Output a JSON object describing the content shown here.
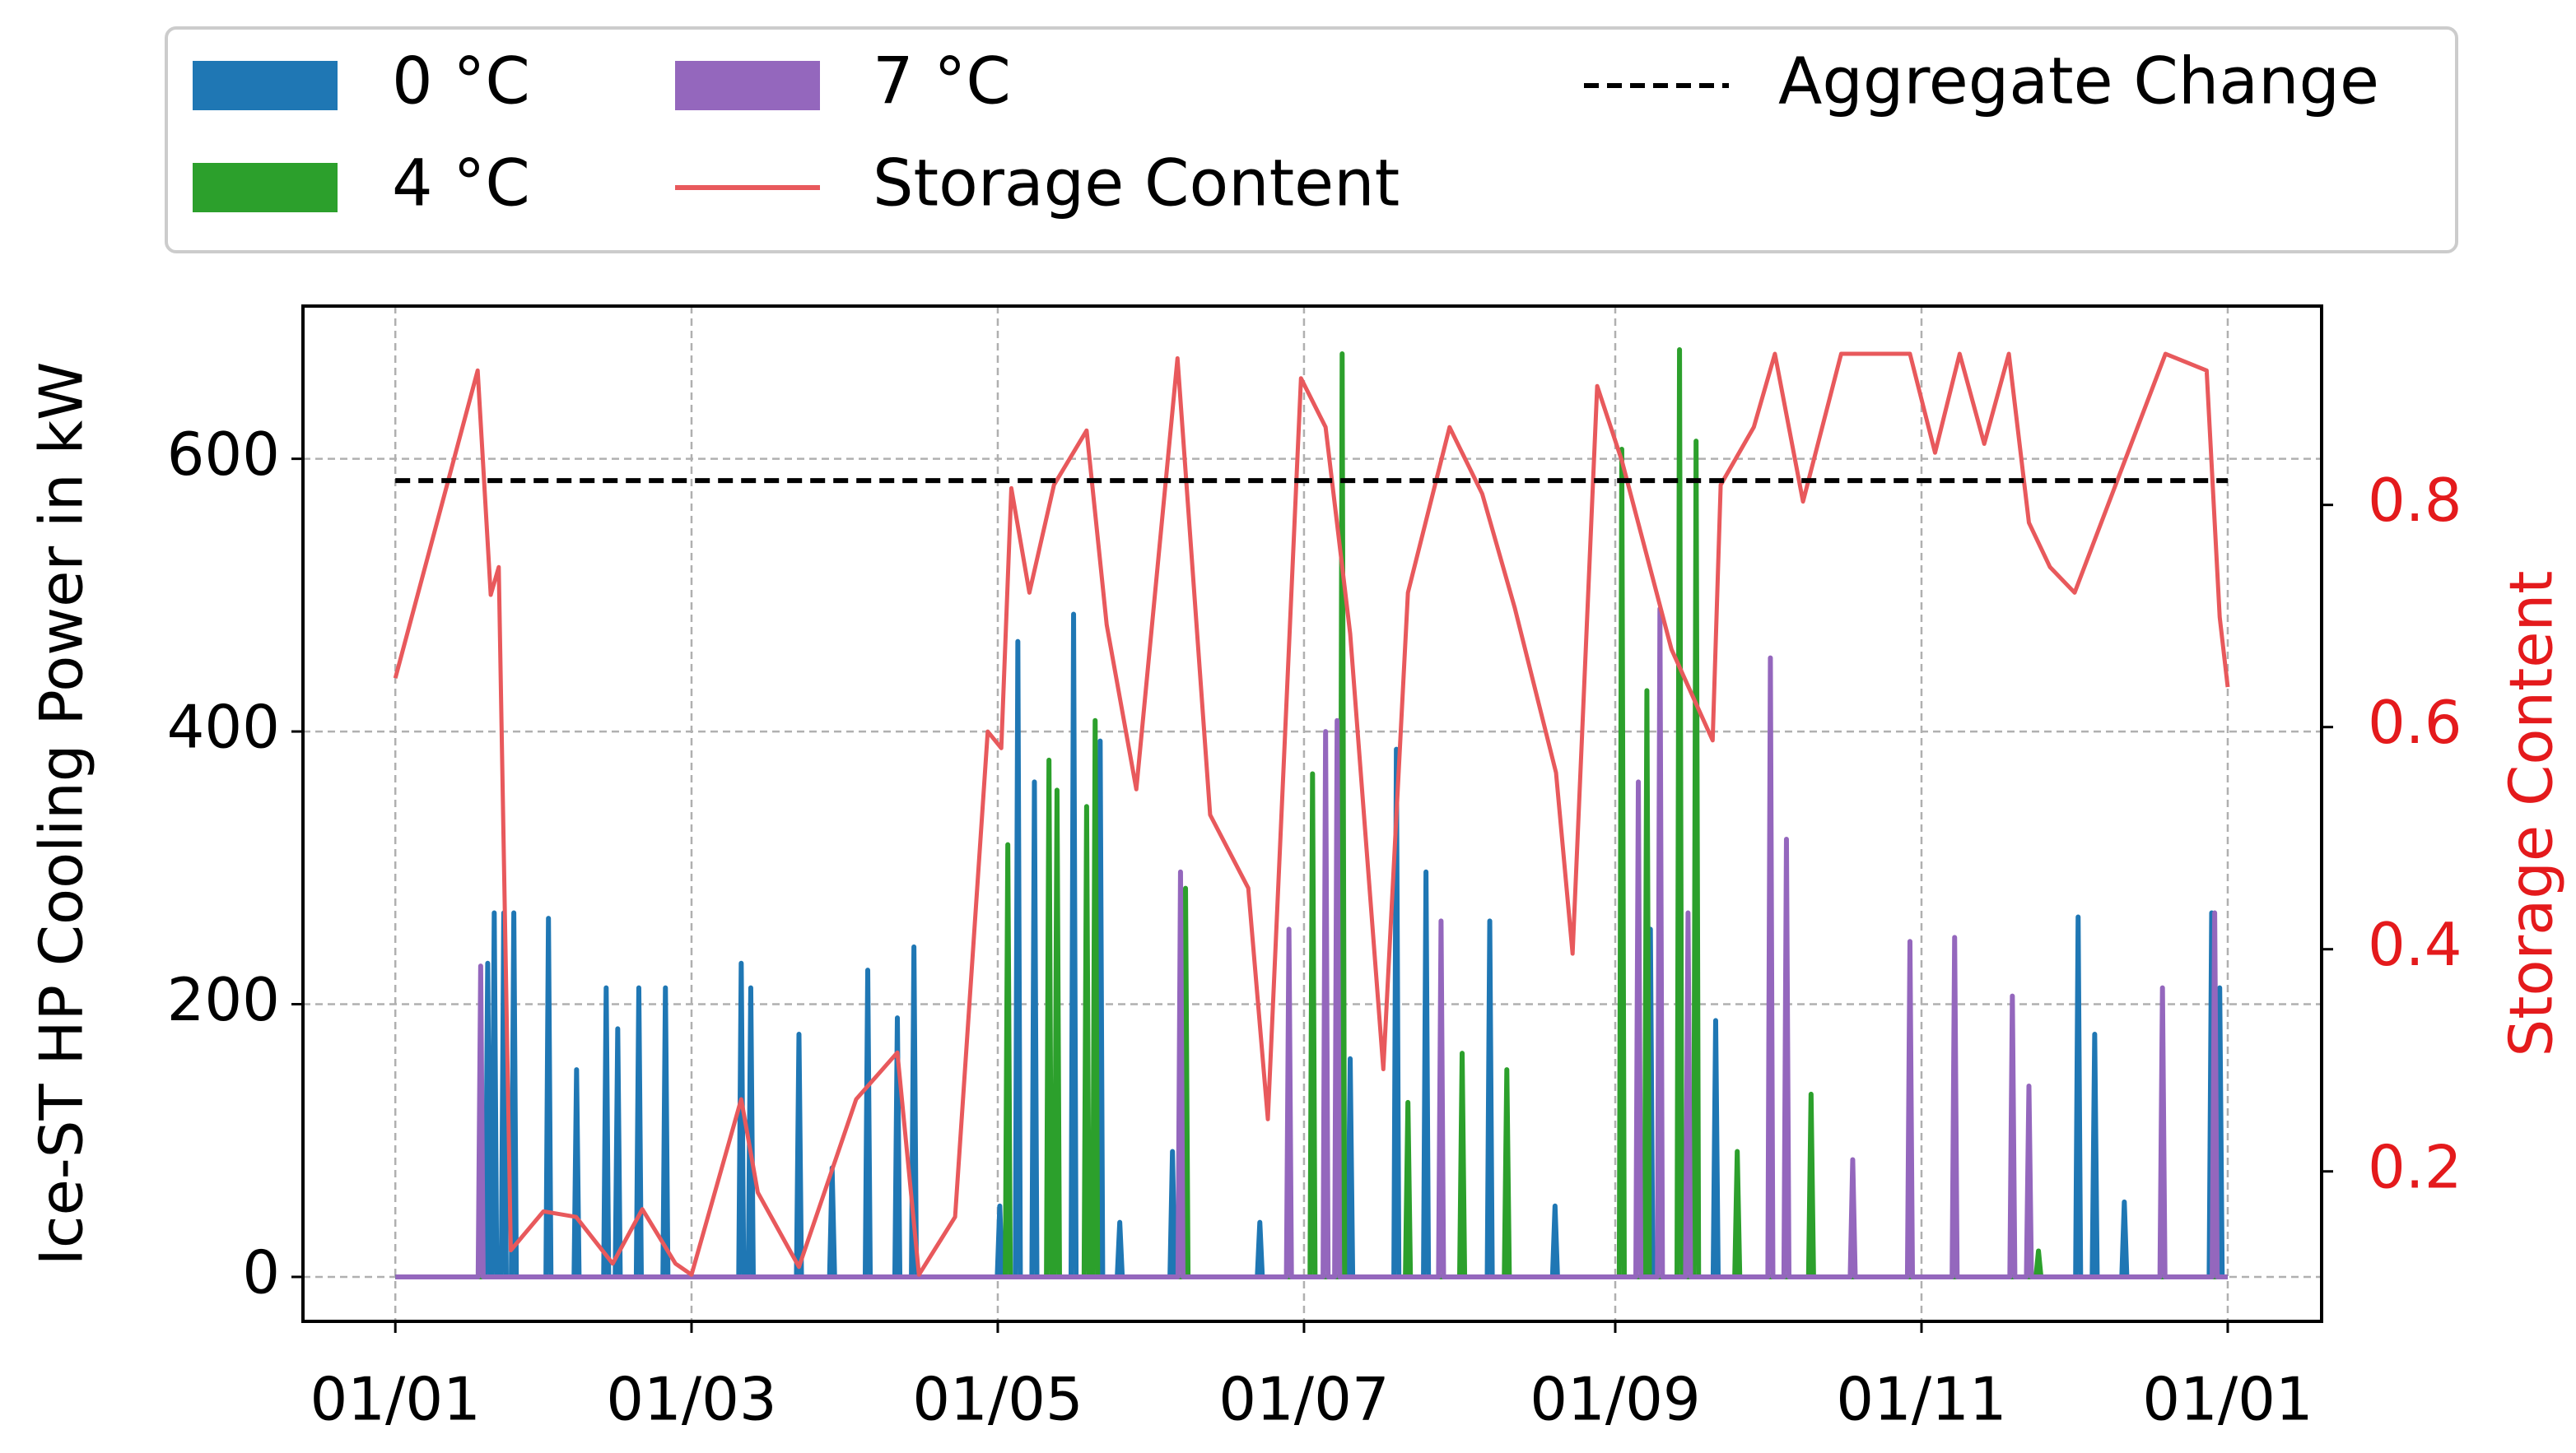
{
  "chart_data": {
    "type": "line",
    "y_label": "Ice-ST HP Cooling Power in kW",
    "y2_label": "Storage Content",
    "xlim": [
      -18.4,
      383.7
    ],
    "xticks": [
      {
        "value": 0,
        "label": "01/01"
      },
      {
        "value": 59,
        "label": "01/03"
      },
      {
        "value": 120,
        "label": "01/05"
      },
      {
        "value": 181,
        "label": "01/07"
      },
      {
        "value": 243,
        "label": "01/09"
      },
      {
        "value": 304,
        "label": "01/11"
      },
      {
        "value": 365,
        "label": "01/01"
      }
    ],
    "ylim": [
      -32.6,
      712
    ],
    "yticks": [
      0,
      200,
      400,
      600
    ],
    "y2lim": [
      0.065,
      0.979
    ],
    "y2ticks": [
      0.2,
      0.4,
      0.6,
      0.8
    ],
    "y2color": "#e41a1c",
    "grid": true,
    "legend": "upper outside",
    "series": [
      {
        "name": "0 °C",
        "color": "#1f77b4",
        "legend_marker": "patch",
        "x": [
          0,
          17.9,
          18.4,
          18.9,
          19.2,
          19.7,
          20.2,
          21.1,
          21.6,
          22.1,
          23.1,
          23.6,
          24.1,
          30,
          30.5,
          31,
          35.6,
          36.1,
          36.6,
          41.5,
          42,
          42.5,
          43.8,
          44.3,
          44.8,
          48,
          48.5,
          49,
          53.3,
          53.8,
          54.3,
          68.4,
          68.9,
          69.4,
          70.3,
          70.8,
          71.3,
          79.9,
          80.4,
          80.9,
          86.5,
          87,
          87.5,
          93.6,
          94.1,
          94.6,
          99.5,
          100,
          100.5,
          102.8,
          103.3,
          103.8,
          119.9,
          120.4,
          120.9,
          123.5,
          124,
          124.5,
          126.8,
          127.3,
          127.8,
          134.6,
          135.1,
          135.6,
          139.9,
          140.4,
          140.9,
          143.8,
          144.3,
          144.8,
          154.3,
          154.8,
          155.3,
          171.7,
          172.2,
          172.7,
          189.7,
          190.2,
          190.7,
          198.9,
          199.4,
          199.9,
          204.8,
          205.3,
          205.8,
          217.5,
          218,
          218.5,
          230.5,
          231,
          231.5,
          249.5,
          250,
          250.5,
          262.5,
          263,
          263.5,
          334.7,
          335.2,
          335.7,
          338,
          338.5,
          339,
          343.9,
          344.4,
          344.9,
          361.3,
          361.8,
          362.3,
          362.9,
          363.4,
          363.9,
          365
        ],
        "values": [
          0,
          0,
          230,
          0,
          0,
          267,
          0,
          0,
          267,
          0,
          0,
          267,
          0,
          0,
          263,
          0,
          0,
          152,
          0,
          0,
          212,
          0,
          0,
          182,
          0,
          0,
          212,
          0,
          0,
          212,
          0,
          0,
          230,
          0,
          0,
          212,
          0,
          0,
          178,
          0,
          0,
          80,
          0,
          0,
          225,
          0,
          0,
          190,
          0,
          0,
          242,
          0,
          0,
          52,
          0,
          0,
          466,
          0,
          0,
          363,
          0,
          0,
          486,
          0,
          0,
          393,
          0,
          0,
          40,
          0,
          0,
          92,
          0,
          0,
          40,
          0,
          0,
          160,
          0,
          0,
          387,
          0,
          0,
          297,
          0,
          0,
          261,
          0,
          0,
          52,
          0,
          0,
          255,
          0,
          0,
          188,
          0,
          0,
          264,
          0,
          0,
          178,
          0,
          0,
          55,
          0,
          0,
          267,
          0,
          0,
          212,
          0,
          0
        ]
      },
      {
        "name": "4 °C",
        "color": "#2ca02c",
        "legend_marker": "patch",
        "x": [
          0,
          121.5,
          122,
          122.5,
          129.7,
          130.2,
          130.7,
          131.3,
          131.8,
          132.3,
          137.2,
          137.7,
          138.2,
          138.9,
          139.4,
          139.9,
          156.9,
          157.4,
          157.9,
          182.2,
          182.7,
          183.2,
          188.1,
          188.6,
          189.1,
          201.2,
          201.7,
          202.2,
          212,
          212.5,
          213,
          220.9,
          221.4,
          221.9,
          243.8,
          244.3,
          244.8,
          248.8,
          249.3,
          249.8,
          255.3,
          255.8,
          256.3,
          258.6,
          259.1,
          259.6,
          266.8,
          267.3,
          267.8,
          281.5,
          282,
          282.5,
          326.8,
          327.3,
          327.8,
          365
        ],
        "values": [
          0,
          0,
          317,
          0,
          0,
          379,
          0,
          0,
          357,
          0,
          0,
          345,
          0,
          0,
          408,
          0,
          0,
          285,
          0,
          0,
          369,
          0,
          0,
          677,
          0,
          0,
          128,
          0,
          0,
          164,
          0,
          0,
          152,
          0,
          0,
          607,
          0,
          0,
          430,
          0,
          0,
          680,
          0,
          0,
          613,
          0,
          0,
          92,
          0,
          0,
          134,
          0,
          0,
          19,
          0,
          0
        ]
      },
      {
        "name": "7 °C",
        "color": "#9467bd",
        "legend_marker": "patch",
        "x": [
          0,
          16.5,
          17,
          17.5,
          155.9,
          156.4,
          156.9,
          177.5,
          178,
          178.5,
          184.8,
          185.3,
          185.8,
          187.1,
          187.6,
          188.1,
          207.8,
          208.3,
          208.8,
          247.1,
          247.6,
          248.1,
          251.4,
          251.9,
          252.4,
          257,
          257.5,
          258,
          273.4,
          273.9,
          274.4,
          276.6,
          277.1,
          277.6,
          289.8,
          290.3,
          290.8,
          301.2,
          301.7,
          302.2,
          310.1,
          310.6,
          311.1,
          321.6,
          322.1,
          322.6,
          324.9,
          325.4,
          325.9,
          351.5,
          352,
          352.5,
          361.9,
          362.4,
          362.9,
          365
        ],
        "values": [
          0,
          0,
          228,
          0,
          0,
          297,
          0,
          0,
          255,
          0,
          0,
          400,
          0,
          0,
          408,
          0,
          0,
          261,
          0,
          0,
          363,
          0,
          0,
          490,
          0,
          0,
          267,
          0,
          0,
          454,
          0,
          0,
          321,
          0,
          0,
          86,
          0,
          0,
          246,
          0,
          0,
          249,
          0,
          0,
          206,
          0,
          0,
          140,
          0,
          0,
          212,
          0,
          0,
          267,
          0,
          0
        ]
      },
      {
        "name": "Storage Content",
        "color": "#e8595c",
        "legend_marker": "line",
        "axis": "y2",
        "x": [
          0,
          16.4,
          19,
          20.6,
          23,
          29.5,
          36,
          43.3,
          49.2,
          55.8,
          59,
          68.9,
          72.2,
          80.4,
          91.8,
          100,
          104.3,
          111.5,
          118,
          120.7,
          122.7,
          126.3,
          131.2,
          137.7,
          141.7,
          147.6,
          155.8,
          162.3,
          169.9,
          173.8,
          180.4,
          185.3,
          190.2,
          196.8,
          201.7,
          210,
          216.5,
          223,
          231.2,
          234.5,
          239.4,
          244.3,
          254.2,
          262.4,
          264,
          270.6,
          274.8,
          280.4,
          288,
          301.7,
          306.7,
          311.6,
          316.5,
          321.4,
          325.4,
          329.6,
          334.5,
          352.6,
          360.8,
          363.4,
          365
        ],
        "values": [
          0.644,
          0.921,
          0.719,
          0.744,
          0.129,
          0.164,
          0.159,
          0.117,
          0.166,
          0.117,
          0.107,
          0.265,
          0.181,
          0.114,
          0.265,
          0.307,
          0.107,
          0.159,
          0.596,
          0.581,
          0.815,
          0.721,
          0.818,
          0.867,
          0.692,
          0.544,
          0.932,
          0.521,
          0.455,
          0.247,
          0.914,
          0.87,
          0.684,
          0.292,
          0.721,
          0.87,
          0.81,
          0.707,
          0.559,
          0.396,
          0.907,
          0.84,
          0.67,
          0.588,
          0.818,
          0.87,
          0.936,
          0.803,
          0.936,
          0.936,
          0.847,
          0.936,
          0.855,
          0.936,
          0.784,
          0.744,
          0.721,
          0.936,
          0.921,
          0.699,
          0.636
        ]
      },
      {
        "name": "Aggregate Change",
        "color": "#000000",
        "legend_marker": "line",
        "dash": true,
        "x": [
          0,
          365
        ],
        "values": [
          584,
          584
        ]
      }
    ]
  }
}
